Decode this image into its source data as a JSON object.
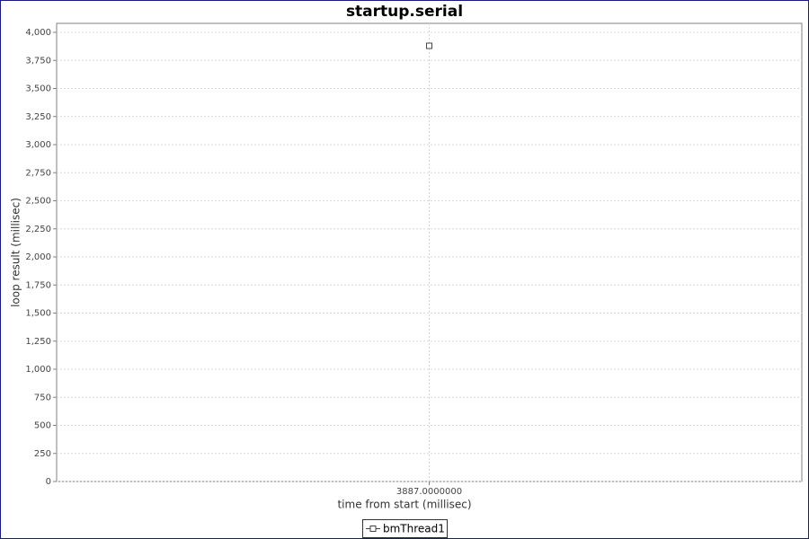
{
  "chart_data": {
    "type": "line",
    "title": "startup.serial",
    "xlabel": "time from start (millisec)",
    "ylabel": "loop result (millisec)",
    "x": [
      3887
    ],
    "series": [
      {
        "name": "bmThread1",
        "color": "#444444",
        "values": [
          3880
        ]
      }
    ],
    "xlim": [
      3886,
      3888
    ],
    "xticks": [
      {
        "value": 3887,
        "label": "3887.0000000"
      }
    ],
    "ylim": [
      0,
      4080
    ],
    "yticks": [
      0,
      250,
      500,
      750,
      {
        "value": 1000,
        "label": "1,000"
      },
      {
        "value": 1250,
        "label": "1,250"
      },
      {
        "value": 1500,
        "label": "1,500"
      },
      {
        "value": 1750,
        "label": "1,750"
      },
      {
        "value": 2000,
        "label": "2,000"
      },
      {
        "value": 2250,
        "label": "2,250"
      },
      {
        "value": 2500,
        "label": "2,500"
      },
      {
        "value": 2750,
        "label": "2,750"
      },
      {
        "value": 3000,
        "label": "3,000"
      },
      {
        "value": 3250,
        "label": "3,250"
      },
      {
        "value": 3500,
        "label": "3,500"
      },
      {
        "value": 3750,
        "label": "3,750"
      },
      {
        "value": 4000,
        "label": "4,000"
      }
    ],
    "grid": true,
    "legend": "bottom"
  }
}
